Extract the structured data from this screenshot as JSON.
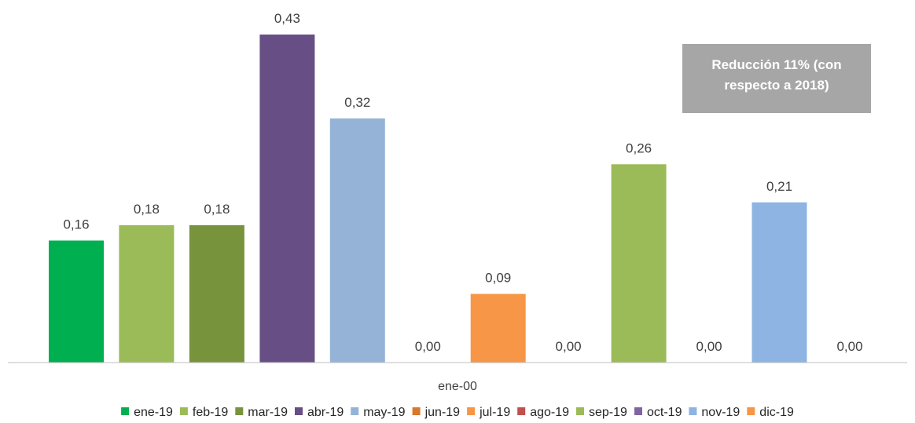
{
  "chart_data": {
    "type": "bar",
    "categories": [
      "ene-00"
    ],
    "series": [
      {
        "name": "ene-19",
        "value": 0.16,
        "label": "0,16",
        "color": "#00b050"
      },
      {
        "name": "feb-19",
        "value": 0.18,
        "label": "0,18",
        "color": "#9bbb59"
      },
      {
        "name": "mar-19",
        "value": 0.18,
        "label": "0,18",
        "color": "#77933c"
      },
      {
        "name": "abr-19",
        "value": 0.43,
        "label": "0,43",
        "color": "#674f85"
      },
      {
        "name": "may-19",
        "value": 0.32,
        "label": "0,32",
        "color": "#95b3d7"
      },
      {
        "name": "jun-19",
        "value": 0.0,
        "label": "0,00",
        "color": "#d8782a"
      },
      {
        "name": "jul-19",
        "value": 0.09,
        "label": "0,09",
        "color": "#f79646"
      },
      {
        "name": "ago-19",
        "value": 0.0,
        "label": "0,00",
        "color": "#c0504d"
      },
      {
        "name": "sep-19",
        "value": 0.26,
        "label": "0,26",
        "color": "#9bbb59"
      },
      {
        "name": "oct-19",
        "value": 0.0,
        "label": "0,00",
        "color": "#8064a2"
      },
      {
        "name": "nov-19",
        "value": 0.21,
        "label": "0,21",
        "color": "#8eb4e3"
      },
      {
        "name": "dic-19",
        "value": 0.0,
        "label": "0,00",
        "color": "#f79646"
      }
    ],
    "ylim": [
      0,
      0.43
    ],
    "grid": false,
    "legend_position": "bottom",
    "annotation": {
      "lines": [
        "Reducción 11% (con",
        "respecto a 2018)"
      ],
      "color": "#a6a6a6"
    }
  }
}
